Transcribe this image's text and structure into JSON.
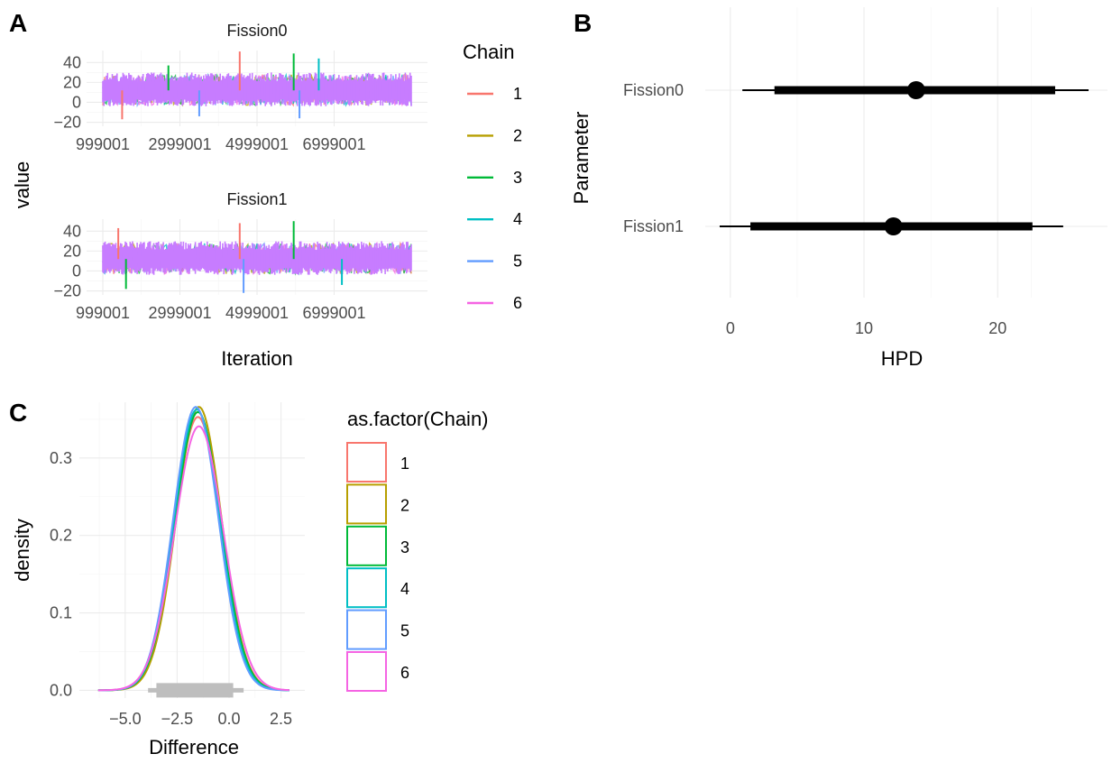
{
  "tags": {
    "a": "A",
    "b": "B",
    "c": "C"
  },
  "colors": [
    "#F8766D",
    "#B79F00",
    "#00BA38",
    "#00BFC4",
    "#619CFF",
    "#F564E3"
  ],
  "chart_data": [
    {
      "type": "line",
      "panel": "A",
      "facets": [
        {
          "title": "Fission0",
          "spikes": [
            {
              "x": 1500000,
              "y": -17,
              "chain": "1"
            },
            {
              "x": 2700000,
              "y": 37,
              "chain": "3"
            },
            {
              "x": 4550000,
              "y": 51,
              "chain": "1"
            },
            {
              "x": 5950000,
              "y": 49,
              "chain": "3"
            },
            {
              "x": 6600000,
              "y": 44,
              "chain": "4"
            },
            {
              "x": 3500000,
              "y": -14,
              "chain": "5"
            },
            {
              "x": 6100000,
              "y": -16,
              "chain": "5"
            }
          ]
        },
        {
          "title": "Fission1",
          "spikes": [
            {
              "x": 1400000,
              "y": 43,
              "chain": "1"
            },
            {
              "x": 1600000,
              "y": -18,
              "chain": "3"
            },
            {
              "x": 4550000,
              "y": 48,
              "chain": "1"
            },
            {
              "x": 4650000,
              "y": -22,
              "chain": "5"
            },
            {
              "x": 5950000,
              "y": 50,
              "chain": "3"
            },
            {
              "x": 7200000,
              "y": -14,
              "chain": "4"
            }
          ]
        }
      ],
      "xlabel": "Iteration",
      "ylabel": "value",
      "x_ticks": [
        "999001",
        "2999001",
        "4999001",
        "6999001"
      ],
      "x_tick_values": [
        999001,
        2999001,
        4999001,
        6999001
      ],
      "xlim": [
        999001,
        8999001
      ],
      "y_ticks": [
        "40",
        "20",
        "0",
        "−20"
      ],
      "y_tick_values": [
        40,
        20,
        0,
        -20
      ],
      "ylim": [
        -24,
        52
      ],
      "band": {
        "mean": 12,
        "low": -3,
        "high": 28
      },
      "legend": {
        "title": "Chain",
        "placement": "right",
        "items": [
          "1",
          "2",
          "3",
          "4",
          "5",
          "6"
        ]
      }
    },
    {
      "type": "interval",
      "panel": "B",
      "xlabel": "HPD",
      "ylabel": "Parameter",
      "categories": [
        "Fission0",
        "Fission1"
      ],
      "x_ticks": [
        "0",
        "10",
        "20"
      ],
      "x_tick_values": [
        0,
        10,
        20
      ],
      "xlim": [
        -1,
        27
      ],
      "series": [
        {
          "category": "Fission0",
          "point": 13.9,
          "inner": [
            3.3,
            24.3
          ],
          "outer": [
            0.9,
            26.8
          ]
        },
        {
          "category": "Fission1",
          "point": 12.2,
          "inner": [
            1.5,
            22.6
          ],
          "outer": [
            -0.8,
            24.9
          ]
        }
      ]
    },
    {
      "type": "density",
      "panel": "C",
      "xlabel": "Difference",
      "ylabel": "density",
      "x_ticks": [
        "−5.0",
        "−2.5",
        "0.0",
        "2.5"
      ],
      "x_tick_values": [
        -5,
        -2.5,
        0,
        2.5
      ],
      "xlim": [
        -6.6,
        3.3
      ],
      "y_ticks": [
        "0.0",
        "0.1",
        "0.2",
        "0.3"
      ],
      "y_tick_values": [
        0,
        0.1,
        0.2,
        0.3
      ],
      "ylim": [
        -0.01,
        0.372
      ],
      "series": [
        {
          "name": "1",
          "mean": -1.5,
          "sd": 1.13
        },
        {
          "name": "2",
          "mean": -1.45,
          "sd": 1.09
        },
        {
          "name": "3",
          "mean": -1.5,
          "sd": 1.11
        },
        {
          "name": "4",
          "mean": -1.55,
          "sd": 1.1
        },
        {
          "name": "5",
          "mean": -1.6,
          "sd": 1.09
        },
        {
          "name": "6",
          "mean": -1.45,
          "sd": 1.17
        }
      ],
      "interval": {
        "inner": [
          -3.5,
          0.2
        ],
        "outer": [
          -3.9,
          0.7
        ]
      },
      "legend": {
        "title": "as.factor(Chain)",
        "placement": "right",
        "items": [
          "1",
          "2",
          "3",
          "4",
          "5",
          "6"
        ]
      }
    }
  ]
}
